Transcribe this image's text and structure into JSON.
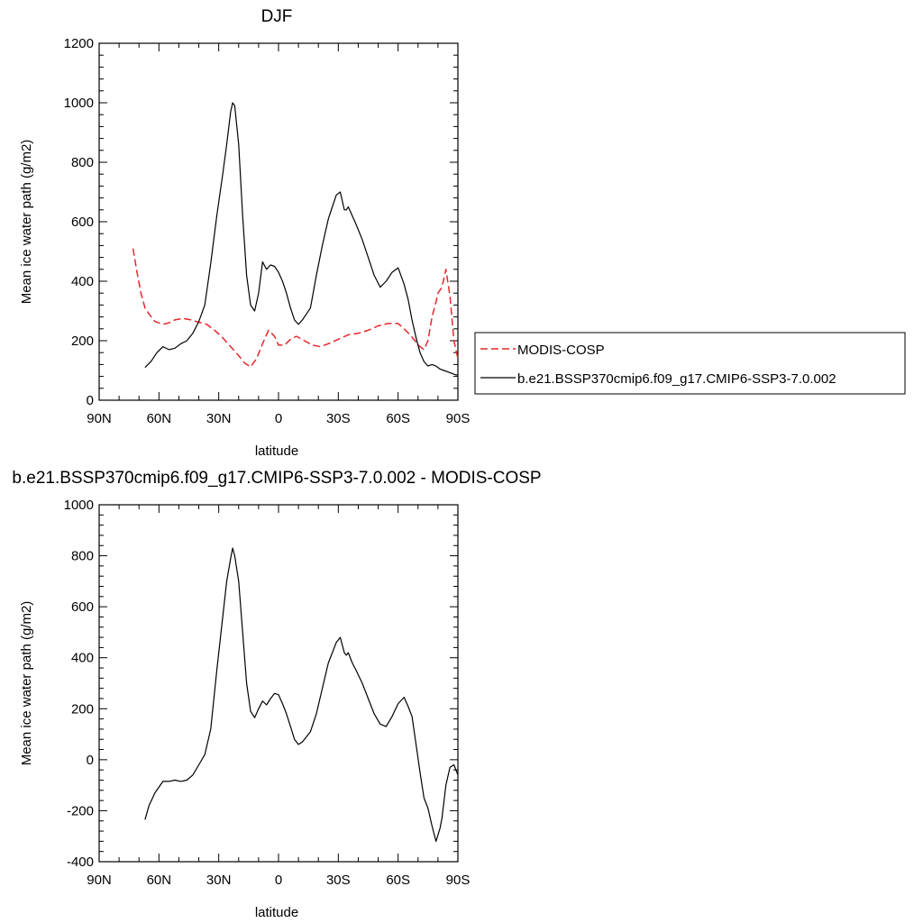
{
  "charts": [
    {
      "title": "DJF",
      "xlabel": "latitude",
      "ylabel": "Mean ice water path (g/m2)",
      "x_ticks": [
        {
          "value": 90,
          "label": "90N"
        },
        {
          "value": 60,
          "label": "60N"
        },
        {
          "value": 30,
          "label": "30N"
        },
        {
          "value": 0,
          "label": "0"
        },
        {
          "value": -30,
          "label": "30S"
        },
        {
          "value": -60,
          "label": "60S"
        },
        {
          "value": -90,
          "label": "90S"
        }
      ],
      "y_ticks": [
        "0",
        "200",
        "400",
        "600",
        "800",
        "1000",
        "1200"
      ]
    },
    {
      "title": "b.e21.BSSP370cmip6.f09_g17.CMIP6-SSP3-7.0.002 - MODIS-COSP",
      "xlabel": "latitude",
      "ylabel": "Mean ice water path (g/m2)",
      "x_ticks": [
        {
          "value": 90,
          "label": "90N"
        },
        {
          "value": 60,
          "label": "60N"
        },
        {
          "value": 30,
          "label": "30N"
        },
        {
          "value": 0,
          "label": "0"
        },
        {
          "value": -30,
          "label": "30S"
        },
        {
          "value": -60,
          "label": "60S"
        },
        {
          "value": -90,
          "label": "90S"
        }
      ],
      "y_ticks": [
        "-400",
        "-200",
        "0",
        "200",
        "400",
        "600",
        "800",
        "1000"
      ]
    }
  ],
  "legend": [
    {
      "label": "MODIS-COSP",
      "color": "#e8262b",
      "dash": "dashed"
    },
    {
      "label": "b.e21.BSSP370cmip6.f09_g17.CMIP6-SSP3-7.0.002",
      "color": "#000000",
      "dash": "solid"
    }
  ],
  "chart_data": [
    {
      "type": "line",
      "title": "DJF",
      "xlabel": "latitude",
      "ylabel": "Mean ice water path (g/m2)",
      "xlim": [
        90,
        -90
      ],
      "ylim": [
        0,
        1200
      ],
      "grid": false,
      "legend_position": "right",
      "series": [
        {
          "name": "MODIS-COSP",
          "color": "#e8262b",
          "dash": "dashed",
          "x": [
            73,
            71,
            69,
            67,
            65,
            62,
            58,
            55,
            52,
            48,
            44,
            40,
            36,
            32,
            28,
            24,
            20,
            17,
            14,
            11,
            8,
            5,
            2,
            0,
            -3,
            -6,
            -9,
            -13,
            -17,
            -21,
            -25,
            -30,
            -35,
            -40,
            -45,
            -50,
            -55,
            -60,
            -63,
            -66,
            -69,
            -71,
            -73,
            -75,
            -77,
            -79,
            -80,
            -82,
            -84,
            -86,
            -88,
            -90
          ],
          "y": [
            510,
            430,
            360,
            310,
            290,
            265,
            255,
            260,
            270,
            275,
            270,
            262,
            255,
            235,
            210,
            180,
            150,
            125,
            112,
            140,
            190,
            235,
            215,
            185,
            185,
            205,
            215,
            200,
            185,
            180,
            190,
            205,
            220,
            225,
            235,
            250,
            258,
            258,
            240,
            220,
            195,
            180,
            170,
            200,
            280,
            330,
            360,
            380,
            440,
            350,
            200,
            140
          ]
        },
        {
          "name": "b.e21.BSSP370cmip6.f09_g17.CMIP6-SSP3-7.0.002",
          "color": "#000000",
          "dash": "solid",
          "x": [
            67,
            64,
            61,
            58,
            55,
            52,
            49,
            46,
            43,
            40,
            37,
            34,
            31,
            28,
            26,
            24,
            23,
            22,
            20,
            18,
            16,
            14,
            12,
            10,
            8,
            6,
            4,
            2,
            0,
            -2,
            -4,
            -6,
            -8,
            -10,
            -12,
            -14,
            -16,
            -19,
            -22,
            -25,
            -27,
            -29,
            -31,
            -33,
            -34,
            -35,
            -37,
            -39,
            -42,
            -45,
            -48,
            -51,
            -54,
            -57,
            -60,
            -63,
            -65,
            -67,
            -69,
            -71,
            -73,
            -75,
            -77,
            -79,
            -81,
            -83,
            -85,
            -87,
            -89,
            -90
          ],
          "y": [
            110,
            130,
            160,
            180,
            170,
            175,
            190,
            200,
            225,
            265,
            320,
            460,
            620,
            760,
            860,
            970,
            1000,
            990,
            860,
            620,
            420,
            320,
            300,
            360,
            465,
            440,
            455,
            450,
            430,
            400,
            360,
            310,
            270,
            255,
            270,
            290,
            310,
            420,
            520,
            610,
            650,
            690,
            700,
            640,
            640,
            650,
            620,
            590,
            540,
            480,
            420,
            380,
            400,
            430,
            445,
            390,
            340,
            270,
            210,
            160,
            130,
            115,
            120,
            115,
            105,
            100,
            95,
            90,
            85,
            85
          ]
        }
      ]
    },
    {
      "type": "line",
      "title": "b.e21.BSSP370cmip6.f09_g17.CMIP6-SSP3-7.0.002 - MODIS-COSP",
      "xlabel": "latitude",
      "ylabel": "Mean ice water path (g/m2)",
      "xlim": [
        90,
        -90
      ],
      "ylim": [
        -400,
        1000
      ],
      "grid": false,
      "series": [
        {
          "color": "#000000",
          "dash": "solid",
          "x": [
            67,
            65,
            62,
            58,
            55,
            52,
            49,
            46,
            43,
            40,
            37,
            34,
            31,
            28,
            26,
            24,
            23,
            22,
            20,
            18,
            16,
            14,
            12,
            10,
            8,
            6,
            4,
            2,
            0,
            -2,
            -4,
            -6,
            -8,
            -10,
            -12,
            -14,
            -16,
            -19,
            -22,
            -25,
            -27,
            -29,
            -31,
            -33,
            -34,
            -35,
            -37,
            -39,
            -42,
            -45,
            -48,
            -51,
            -54,
            -57,
            -60,
            -63,
            -65,
            -67,
            -69,
            -71,
            -73,
            -75,
            -77,
            -79,
            -81,
            -82,
            -84,
            -86,
            -88,
            -90
          ],
          "y": [
            -235,
            -180,
            -130,
            -85,
            -85,
            -80,
            -85,
            -80,
            -60,
            -20,
            20,
            120,
            350,
            560,
            700,
            790,
            830,
            800,
            700,
            500,
            300,
            190,
            165,
            200,
            230,
            215,
            240,
            260,
            255,
            220,
            180,
            130,
            80,
            60,
            70,
            90,
            110,
            180,
            280,
            380,
            420,
            460,
            480,
            420,
            410,
            420,
            380,
            350,
            300,
            240,
            180,
            140,
            130,
            170,
            220,
            245,
            210,
            170,
            60,
            -50,
            -150,
            -190,
            -260,
            -320,
            -270,
            -230,
            -100,
            -30,
            -20,
            -60
          ]
        }
      ]
    }
  ]
}
